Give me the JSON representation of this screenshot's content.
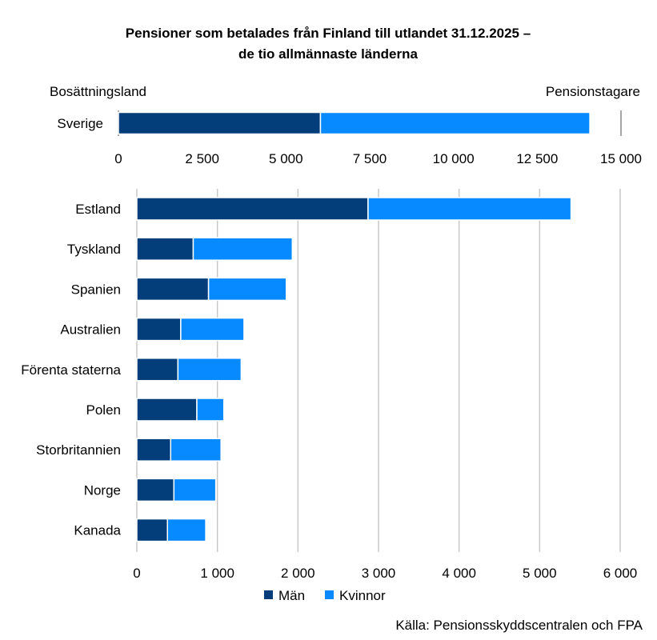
{
  "chart_data": [
    {
      "type": "bar",
      "orientation": "horizontal",
      "stacked": true,
      "title": "Pensioner som betalades från Finland till utlandet 31.12.2025 –",
      "subtitle": "de tio allmännaste länderna",
      "ylabel": "Bosättningsland",
      "xlabel": "Pensionstagare",
      "categories": [
        "Sverige"
      ],
      "series": [
        {
          "name": "Män",
          "color": "#033e7a",
          "values": [
            6030
          ]
        },
        {
          "name": "Kvinnor",
          "color": "#0789ff",
          "values": [
            8040
          ]
        }
      ],
      "xlim": [
        0,
        15000
      ],
      "ticks": [
        0,
        2500,
        5000,
        7500,
        10000,
        12500,
        15000
      ],
      "tick_labels": [
        "0",
        "2 500",
        "5 000",
        "7 500",
        "10 000",
        "12 500",
        "15 000"
      ],
      "grid": false
    },
    {
      "type": "bar",
      "orientation": "horizontal",
      "stacked": true,
      "categories": [
        "Estland",
        "Tyskland",
        "Spanien",
        "Australien",
        "Förenta staterna",
        "Polen",
        "Storbritannien",
        "Norge",
        "Kanada"
      ],
      "series": [
        {
          "name": "Män",
          "color": "#033e7a",
          "values": [
            2870,
            700,
            890,
            545,
            510,
            745,
            420,
            460,
            380
          ]
        },
        {
          "name": "Kvinnor",
          "color": "#0789ff",
          "values": [
            2520,
            1230,
            965,
            785,
            785,
            335,
            625,
            520,
            475
          ]
        }
      ],
      "xlim": [
        0,
        6000
      ],
      "ticks": [
        0,
        1000,
        2000,
        3000,
        4000,
        5000,
        6000
      ],
      "tick_labels": [
        "0",
        "1 000",
        "2 000",
        "3 000",
        "4 000",
        "5 000",
        "6 000"
      ],
      "grid": true,
      "legend": "bottom"
    }
  ],
  "source": "Källa: Pensionsskyddscentralen och FPA"
}
